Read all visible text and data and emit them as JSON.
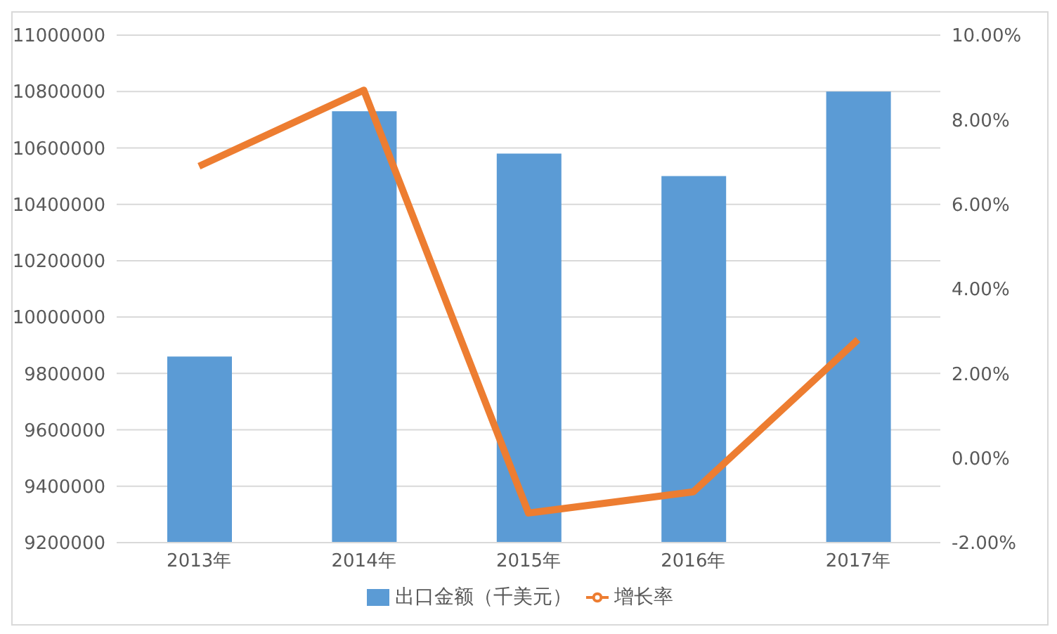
{
  "chart_data": {
    "type": "bar",
    "categories": [
      "2013年",
      "2014年",
      "2015年",
      "2016年",
      "2017年"
    ],
    "series": [
      {
        "name": "出口金额（千美元）",
        "color": "#5b9bd5",
        "values": [
          9860000,
          10730000,
          10580000,
          10500000,
          10800000
        ]
      },
      {
        "name": "增长率",
        "type": "line",
        "axis": "y2",
        "color": "#ed7d31",
        "values": [
          6.9,
          8.7,
          -1.3,
          -0.8,
          2.8
        ]
      }
    ],
    "ylim": [
      9200000,
      11000000
    ],
    "yticks": [
      9200000,
      9400000,
      9600000,
      9800000,
      10000000,
      10200000,
      10400000,
      10600000,
      10800000,
      11000000
    ],
    "y2lim": [
      -2,
      10
    ],
    "y2ticks": [
      {
        "value": -2,
        "label": "-2.00%"
      },
      {
        "value": 0,
        "label": "0.00%"
      },
      {
        "value": 2,
        "label": "2.00%"
      },
      {
        "value": 4,
        "label": "4.00%"
      },
      {
        "value": 6,
        "label": "6.00%"
      },
      {
        "value": 8,
        "label": "8.00%"
      },
      {
        "value": 10,
        "label": "10.00%"
      }
    ],
    "grid": "y",
    "legend": "bottom",
    "marker": "none"
  }
}
